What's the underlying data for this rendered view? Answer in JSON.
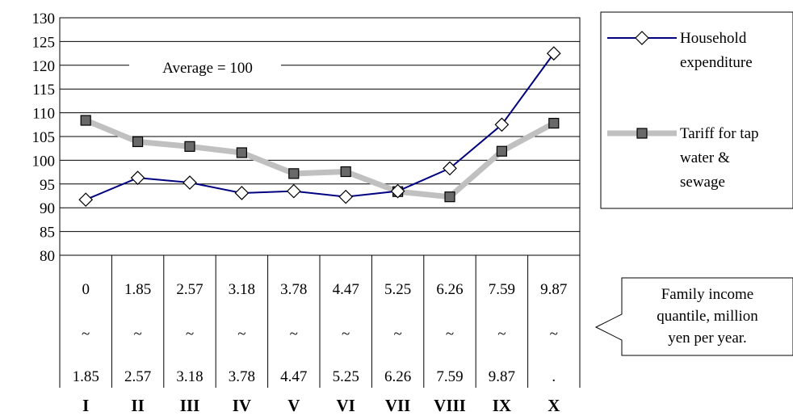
{
  "chart_data": {
    "type": "line",
    "ylim": [
      80,
      130
    ],
    "y_ticks": [
      130,
      125,
      120,
      115,
      110,
      105,
      100,
      95,
      90,
      85,
      80
    ],
    "grid": true,
    "categories": [
      "I",
      "II",
      "III",
      "IV",
      "V",
      "VI",
      "VII",
      "VIII",
      "IX",
      "X"
    ],
    "income_ranges": [
      {
        "low": "0",
        "sep": "~",
        "high": "1.85"
      },
      {
        "low": "1.85",
        "sep": "~",
        "high": "2.57"
      },
      {
        "low": "2.57",
        "sep": "~",
        "high": "3.18"
      },
      {
        "low": "3.18",
        "sep": "~",
        "high": "3.78"
      },
      {
        "low": "3.78",
        "sep": "~",
        "high": "4.47"
      },
      {
        "low": "4.47",
        "sep": "~",
        "high": "5.25"
      },
      {
        "low": "5.25",
        "sep": "~",
        "high": "6.26"
      },
      {
        "low": "6.26",
        "sep": "~",
        "high": "7.59"
      },
      {
        "low": "7.59",
        "sep": "~",
        "high": "9.87"
      },
      {
        "low": "9.87",
        "sep": "~",
        "high": "."
      }
    ],
    "series": [
      {
        "name_lines": [
          "Household",
          "expenditure"
        ],
        "color": "#000080",
        "marker": "diamond",
        "values": [
          91.7,
          96.3,
          95.3,
          93.1,
          93.5,
          92.3,
          93.5,
          98.3,
          107.5,
          122.5
        ]
      },
      {
        "name_lines": [
          "Tariff for tap",
          "water &",
          "sewage"
        ],
        "color": "#c0c0c0",
        "marker": "square",
        "marker_color": "#696969",
        "values": [
          108.4,
          103.9,
          102.9,
          101.6,
          97.2,
          97.6,
          93.4,
          92.3,
          101.9,
          107.8
        ]
      }
    ],
    "annotation": "Average = 100",
    "callout_lines": [
      "Family income",
      "quantile, million",
      "yen per year."
    ]
  }
}
